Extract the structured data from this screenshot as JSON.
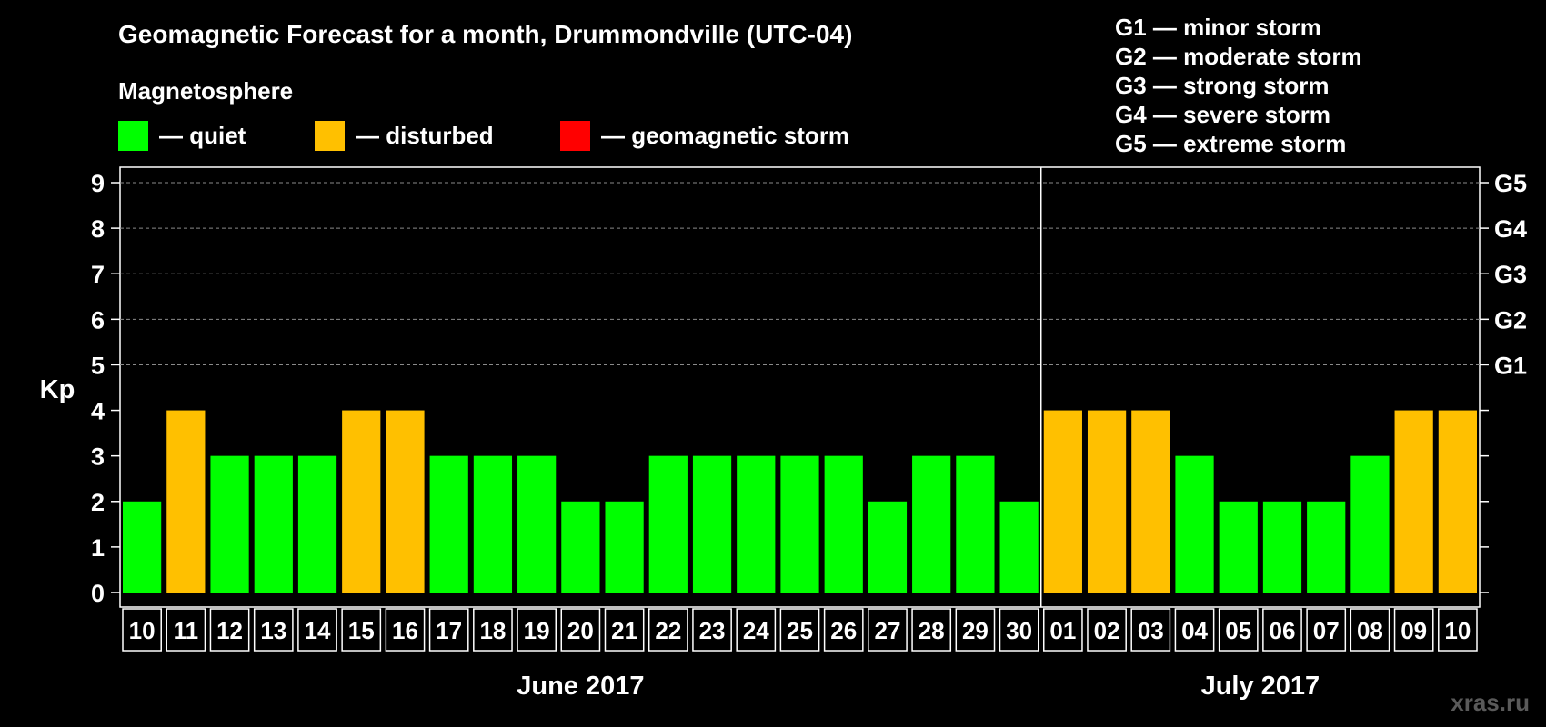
{
  "title": "Geomagnetic Forecast for a month, Drummondville (UTC-04)",
  "section_label": "Magnetosphere",
  "legend": [
    {
      "label": "— quiet",
      "color": "#00ff00"
    },
    {
      "label": "— disturbed",
      "color": "#ffc000"
    },
    {
      "label": "— geomagnetic storm",
      "color": "#ff0000"
    }
  ],
  "storm_scale": [
    "G1 — minor storm",
    "G2 — moderate storm",
    "G3 — strong storm",
    "G4 — severe storm",
    "G5 — extreme storm"
  ],
  "watermark": "xras.ru",
  "chart_data": {
    "type": "bar",
    "ylabel": "Kp",
    "ylim": [
      0,
      9
    ],
    "yticks": [
      "0",
      "1",
      "2",
      "3",
      "4",
      "5",
      "6",
      "7",
      "8",
      "9"
    ],
    "right_ticks": [
      {
        "value": 5,
        "label": "G1"
      },
      {
        "value": 6,
        "label": "G2"
      },
      {
        "value": 7,
        "label": "G3"
      },
      {
        "value": 8,
        "label": "G4"
      },
      {
        "value": 9,
        "label": "G5"
      }
    ],
    "categories": [
      "10",
      "11",
      "12",
      "13",
      "14",
      "15",
      "16",
      "17",
      "18",
      "19",
      "20",
      "21",
      "22",
      "23",
      "24",
      "25",
      "26",
      "27",
      "28",
      "29",
      "30",
      "01",
      "02",
      "03",
      "04",
      "05",
      "06",
      "07",
      "08",
      "09",
      "10"
    ],
    "values": [
      2,
      4,
      3,
      3,
      3,
      4,
      4,
      3,
      3,
      3,
      2,
      2,
      3,
      3,
      3,
      3,
      3,
      2,
      3,
      3,
      2,
      4,
      4,
      4,
      3,
      2,
      2,
      2,
      3,
      4,
      4
    ],
    "status": [
      "quiet",
      "disturbed",
      "quiet",
      "quiet",
      "quiet",
      "disturbed",
      "disturbed",
      "quiet",
      "quiet",
      "quiet",
      "quiet",
      "quiet",
      "quiet",
      "quiet",
      "quiet",
      "quiet",
      "quiet",
      "quiet",
      "quiet",
      "quiet",
      "quiet",
      "disturbed",
      "disturbed",
      "disturbed",
      "quiet",
      "quiet",
      "quiet",
      "quiet",
      "quiet",
      "disturbed",
      "disturbed"
    ],
    "months": [
      {
        "label": "June 2017",
        "count": 21
      },
      {
        "label": "July 2017",
        "count": 10
      }
    ],
    "grid": true
  }
}
